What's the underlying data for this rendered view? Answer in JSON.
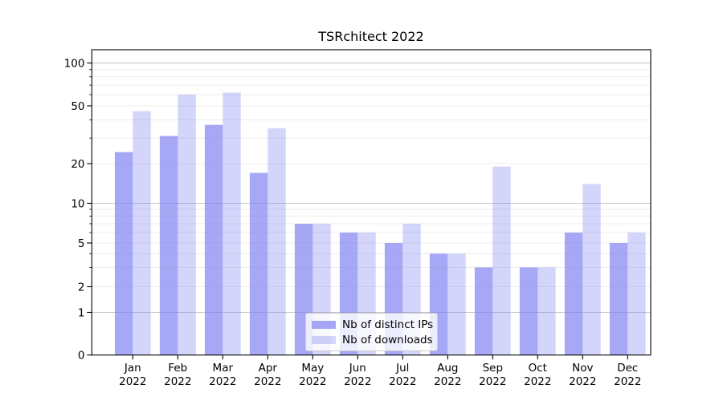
{
  "chart_data": {
    "type": "bar",
    "title": "TSRchitect 2022",
    "categories": [
      "Jan 2022",
      "Feb 2022",
      "Mar 2022",
      "Apr 2022",
      "May 2022",
      "Jun 2022",
      "Jul 2022",
      "Aug 2022",
      "Sep 2022",
      "Oct 2022",
      "Nov 2022",
      "Dec 2022"
    ],
    "series": [
      {
        "name": "Nb of distinct IPs",
        "values": [
          24,
          31,
          37,
          17,
          7,
          6,
          5,
          4,
          3,
          3,
          6,
          5
        ],
        "fill": "rgba(123,126,240,0.67)"
      },
      {
        "name": "Nb of downloads",
        "values": [
          46,
          60,
          62,
          35,
          7,
          6,
          7,
          4,
          19,
          3,
          14,
          6
        ],
        "fill": "rgba(123,126,240,0.33)"
      }
    ],
    "xlabel": "",
    "ylabel": "",
    "yscale": "symlog",
    "ylim": [
      0,
      133
    ],
    "yticks": [
      0,
      1,
      2,
      5,
      10,
      20,
      50,
      100
    ],
    "minor_ticks": [
      3,
      4,
      6,
      7,
      8,
      9,
      30,
      40,
      60,
      70,
      80,
      90
    ],
    "light_gridlines": [
      2,
      3,
      4,
      5,
      6,
      7,
      8,
      9,
      20,
      30,
      40,
      50,
      60,
      70,
      80,
      90
    ],
    "strong_gridlines": [
      1,
      10,
      100
    ],
    "grid": true,
    "legend_position": "lower center",
    "colors": {
      "bar_base": "#7b7ef0",
      "grid_light": "#ececec",
      "grid_strong": "#c6c6c6",
      "axis": "#000000",
      "background": "#ffffff"
    }
  }
}
